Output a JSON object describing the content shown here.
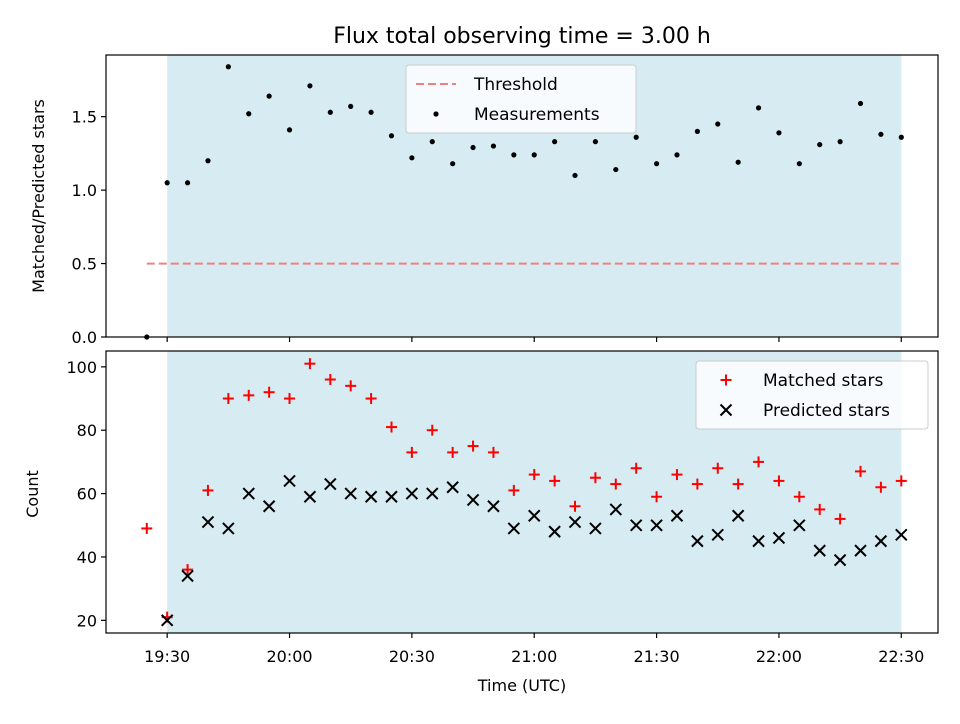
{
  "chart_data": [
    {
      "type": "scatter",
      "title": "Flux total observing time = 3.00 h",
      "xlabel": "",
      "ylabel": "Matched/Predicted stars",
      "xlim": [
        "19:15",
        "22:39"
      ],
      "ylim": [
        0,
        1.92
      ],
      "yticks": [
        0.0,
        0.5,
        1.0,
        1.5
      ],
      "ytick_labels": [
        "0.0",
        "0.5",
        "1.0",
        "1.5"
      ],
      "shaded_span": [
        "19:30",
        "22:30"
      ],
      "shaded_color": "#add8e6",
      "legend_position": "upper center",
      "threshold": {
        "name": "Threshold",
        "value": 0.5,
        "x_range": [
          "19:25",
          "22:30"
        ],
        "color": "#f08080",
        "style": "dashed"
      },
      "series": [
        {
          "name": "Measurements",
          "color": "#000000",
          "marker": "dot",
          "x": [
            "19:25",
            "19:30",
            "19:35",
            "19:40",
            "19:45",
            "19:50",
            "19:55",
            "20:00",
            "20:05",
            "20:10",
            "20:15",
            "20:20",
            "20:25",
            "20:30",
            "20:35",
            "20:40",
            "20:45",
            "20:50",
            "20:55",
            "21:00",
            "21:05",
            "21:10",
            "21:15",
            "21:20",
            "21:25",
            "21:30",
            "21:35",
            "21:40",
            "21:45",
            "21:50",
            "21:55",
            "22:00",
            "22:05",
            "22:10",
            "22:15",
            "22:20",
            "22:25",
            "22:30"
          ],
          "values": [
            0.0,
            1.05,
            1.05,
            1.2,
            1.84,
            1.52,
            1.64,
            1.41,
            1.71,
            1.53,
            1.57,
            1.53,
            1.37,
            1.22,
            1.33,
            1.18,
            1.29,
            1.3,
            1.24,
            1.24,
            1.33,
            1.1,
            1.33,
            1.14,
            1.36,
            1.18,
            1.24,
            1.4,
            1.45,
            1.19,
            1.56,
            1.39,
            1.18,
            1.31,
            1.33,
            1.59,
            1.38,
            1.36
          ]
        }
      ]
    },
    {
      "type": "scatter",
      "title": "",
      "xlabel": "Time (UTC)",
      "ylabel": "Count",
      "xlim": [
        "19:15",
        "22:39"
      ],
      "ylim": [
        16,
        105
      ],
      "yticks": [
        20,
        40,
        60,
        80,
        100
      ],
      "ytick_labels": [
        "20",
        "40",
        "60",
        "80",
        "100"
      ],
      "xticks": [
        "19:30",
        "20:00",
        "20:30",
        "21:00",
        "21:30",
        "22:00",
        "22:30"
      ],
      "xtick_labels": [
        "19:30",
        "20:00",
        "20:30",
        "21:00",
        "21:30",
        "22:00",
        "22:30"
      ],
      "shaded_span": [
        "19:30",
        "22:30"
      ],
      "shaded_color": "#add8e6",
      "legend_position": "upper right",
      "series": [
        {
          "name": "Matched stars",
          "color": "#ff0000",
          "marker": "plus",
          "x": [
            "19:25",
            "19:30",
            "19:35",
            "19:40",
            "19:45",
            "19:50",
            "19:55",
            "20:00",
            "20:05",
            "20:10",
            "20:15",
            "20:20",
            "20:25",
            "20:30",
            "20:35",
            "20:40",
            "20:45",
            "20:50",
            "20:55",
            "21:00",
            "21:05",
            "21:10",
            "21:15",
            "21:20",
            "21:25",
            "21:30",
            "21:35",
            "21:40",
            "21:45",
            "21:50",
            "21:55",
            "22:00",
            "22:05",
            "22:10",
            "22:15",
            "22:20",
            "22:25",
            "22:30"
          ],
          "values": [
            49,
            21,
            36,
            61,
            90,
            91,
            92,
            90,
            101,
            96,
            94,
            90,
            81,
            73,
            80,
            73,
            75,
            73,
            61,
            66,
            64,
            56,
            65,
            63,
            68,
            59,
            66,
            63,
            68,
            63,
            70,
            64,
            59,
            55,
            52,
            67,
            62,
            64
          ]
        },
        {
          "name": "Predicted stars",
          "color": "#000000",
          "marker": "x",
          "x": [
            "19:30",
            "19:35",
            "19:40",
            "19:45",
            "19:50",
            "19:55",
            "20:00",
            "20:05",
            "20:10",
            "20:15",
            "20:20",
            "20:25",
            "20:30",
            "20:35",
            "20:40",
            "20:45",
            "20:50",
            "20:55",
            "21:00",
            "21:05",
            "21:10",
            "21:15",
            "21:20",
            "21:25",
            "21:30",
            "21:35",
            "21:40",
            "21:45",
            "21:50",
            "21:55",
            "22:00",
            "22:05",
            "22:10",
            "22:15",
            "22:20",
            "22:25",
            "22:30"
          ],
          "values": [
            20,
            34,
            51,
            49,
            60,
            56,
            64,
            59,
            63,
            60,
            59,
            59,
            60,
            60,
            62,
            58,
            56,
            49,
            53,
            48,
            51,
            49,
            55,
            50,
            50,
            53,
            45,
            47,
            53,
            45,
            46,
            50,
            42,
            39,
            42,
            45,
            47
          ]
        }
      ]
    }
  ]
}
